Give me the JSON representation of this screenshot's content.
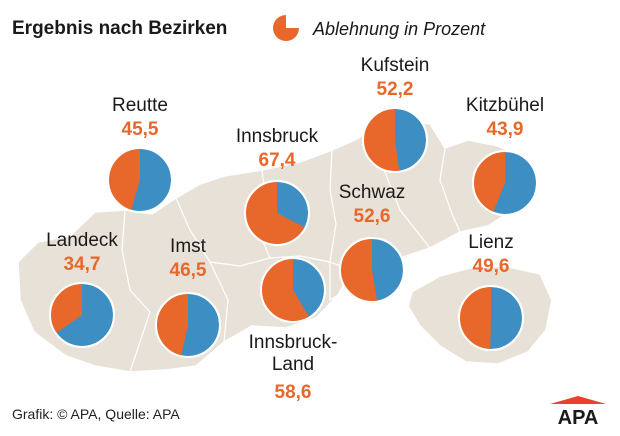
{
  "header": {
    "title": "Ergebnis nach Bezirken",
    "legend_label": "Ablehnung in Prozent"
  },
  "footer": {
    "source": "Grafik: © APA, Quelle: APA",
    "logo_text": "APA"
  },
  "colors": {
    "ablehnung": "#e8672a",
    "rest": "#3d8fc3",
    "map_fill": "#e7e1d7",
    "map_border": "#ffffff",
    "text": "#1a1a1a"
  },
  "chart_data": {
    "type": "pie",
    "title": "Ergebnis nach Bezirken",
    "series": [
      {
        "name": "Ablehnung in Prozent"
      }
    ],
    "unit": "%",
    "districts": [
      {
        "key": "reutte",
        "name": "Reutte",
        "value": 45.5,
        "label": "45,5"
      },
      {
        "key": "innsbruck",
        "name": "Innsbruck",
        "value": 67.4,
        "label": "67,4"
      },
      {
        "key": "kufstein",
        "name": "Kufstein",
        "value": 52.2,
        "label": "52,2"
      },
      {
        "key": "kitzbuehel",
        "name": "Kitzbühel",
        "value": 43.9,
        "label": "43,9"
      },
      {
        "key": "landeck",
        "name": "Landeck",
        "value": 34.7,
        "label": "34,7"
      },
      {
        "key": "imst",
        "name": "Imst",
        "value": 46.5,
        "label": "46,5"
      },
      {
        "key": "schwaz",
        "name": "Schwaz",
        "value": 52.6,
        "label": "52,6"
      },
      {
        "key": "innsbruck-land",
        "name": "Innsbruck-\nLand",
        "value": 58.6,
        "label": "58,6"
      },
      {
        "key": "lienz",
        "name": "Lienz",
        "value": 49.6,
        "label": "49,6"
      }
    ]
  }
}
